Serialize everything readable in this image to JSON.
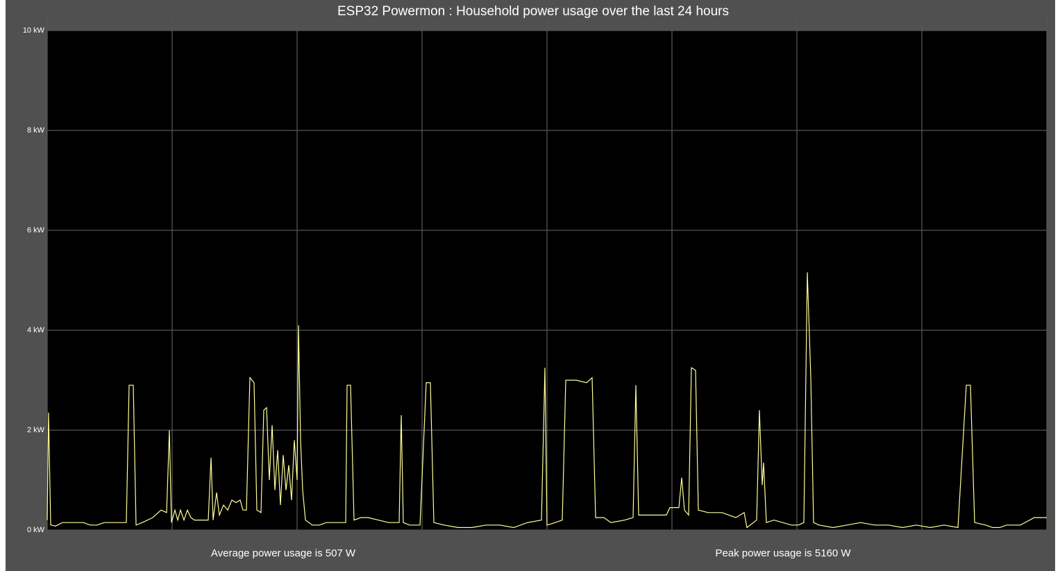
{
  "chart_data": {
    "type": "line",
    "title": "ESP32 Powermon : Household power usage over the last 24 hours",
    "annotations": [
      "Average power usage is 507 W",
      "Peak power usage is 5160 W"
    ],
    "x": [
      0,
      2,
      5,
      12,
      22,
      32,
      52,
      62,
      72,
      82,
      102,
      114,
      118,
      124,
      128,
      137,
      152,
      164,
      172,
      176,
      179,
      184,
      188,
      192,
      197,
      202,
      207,
      212,
      232,
      236,
      239,
      244,
      248,
      254,
      260,
      266,
      272,
      278,
      282,
      287,
      292,
      298,
      302,
      308,
      312,
      316,
      320,
      324,
      328,
      332,
      336,
      340,
      344,
      348,
      352,
      356,
      360,
      362,
      365,
      368,
      372,
      382,
      392,
      402,
      422,
      430,
      432,
      437,
      442,
      452,
      462,
      477,
      492,
      507,
      510,
      513,
      522,
      537,
      546,
      552,
      557,
      572,
      592,
      612,
      632,
      652,
      672,
      692,
      712,
      717,
      720,
      732,
      742,
      747,
      762,
      777,
      785,
      790,
      802,
      812,
      832,
      844,
      848,
      852,
      872,
      892,
      897,
      910,
      914,
      918,
      924,
      928,
      934,
      938,
      952,
      972,
      992,
      1004,
      1008,
      1022,
      1026,
      1030,
      1032,
      1036,
      1047,
      1072,
      1082,
      1090,
      1095,
      1100,
      1104,
      1112,
      1132,
      1152,
      1172,
      1192,
      1212,
      1232,
      1252,
      1272,
      1292,
      1312,
      1324,
      1330,
      1336,
      1352,
      1362,
      1372,
      1382,
      1402,
      1422,
      1440
    ],
    "series": [
      {
        "name": "Power",
        "color": "#ffff99",
        "values": [
          0.2,
          2.35,
          0.1,
          0.08,
          0.15,
          0.15,
          0.15,
          0.1,
          0.1,
          0.15,
          0.15,
          0.15,
          2.9,
          2.9,
          0.1,
          0.15,
          0.25,
          0.4,
          0.35,
          2.0,
          0.15,
          0.4,
          0.2,
          0.4,
          0.2,
          0.4,
          0.25,
          0.2,
          0.2,
          1.45,
          0.2,
          0.75,
          0.3,
          0.5,
          0.4,
          0.6,
          0.55,
          0.6,
          0.4,
          0.4,
          3.05,
          2.95,
          0.4,
          0.35,
          2.4,
          2.45,
          1.0,
          2.1,
          0.8,
          1.6,
          0.5,
          1.5,
          0.8,
          1.3,
          0.6,
          1.8,
          1.0,
          4.1,
          1.8,
          0.8,
          0.2,
          0.1,
          0.1,
          0.15,
          0.15,
          0.15,
          2.9,
          2.9,
          0.2,
          0.25,
          0.25,
          0.2,
          0.15,
          0.15,
          2.3,
          0.15,
          0.1,
          0.1,
          2.95,
          2.95,
          0.15,
          0.1,
          0.05,
          0.05,
          0.1,
          0.1,
          0.05,
          0.15,
          0.2,
          3.25,
          0.1,
          0.15,
          0.2,
          3.0,
          3.0,
          2.95,
          3.05,
          0.25,
          0.25,
          0.15,
          0.2,
          0.25,
          2.9,
          0.3,
          0.3,
          0.3,
          0.45,
          0.45,
          1.05,
          0.4,
          0.3,
          3.25,
          3.2,
          0.4,
          0.35,
          0.35,
          0.25,
          0.35,
          0.05,
          0.2,
          2.4,
          0.9,
          1.35,
          0.15,
          0.2,
          0.1,
          0.1,
          0.15,
          5.16,
          3.05,
          0.15,
          0.1,
          0.05,
          0.1,
          0.15,
          0.1,
          0.1,
          0.05,
          0.1,
          0.05,
          0.1,
          0.05,
          2.9,
          2.9,
          0.15,
          0.1,
          0.05,
          0.05,
          0.1,
          0.1,
          0.25,
          0.25
        ]
      }
    ],
    "xlim": [
      0,
      1440
    ],
    "xticks": [
      0,
      180,
      360,
      540,
      720,
      900,
      1080,
      1260,
      1440
    ],
    "ylim": [
      0,
      10
    ],
    "yticks": [
      {
        "value": 0,
        "label": "0 kW"
      },
      {
        "value": 2,
        "label": "2 kW"
      },
      {
        "value": 4,
        "label": "4 kW"
      },
      {
        "value": 6,
        "label": "6 kW"
      },
      {
        "value": 8,
        "label": "8 kW"
      },
      {
        "value": 10,
        "label": "10 kW"
      }
    ],
    "grid": true
  }
}
